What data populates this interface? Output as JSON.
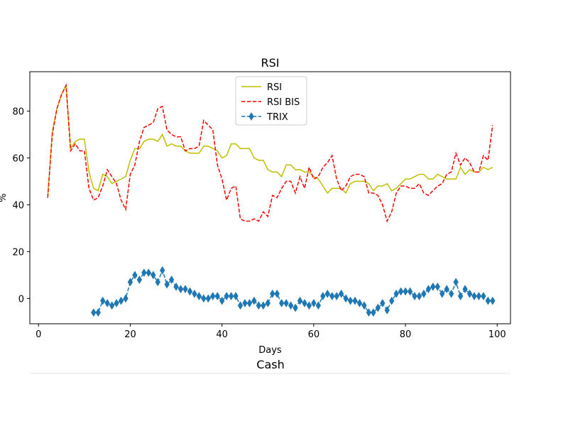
{
  "chart_data": [
    {
      "type": "line",
      "title": "RSI",
      "xlabel": "Days",
      "ylabel": "%",
      "xlim": [
        -1.9,
        102.9
      ],
      "ylim": [
        -10.8,
        96.8
      ],
      "xticks": [
        0,
        20,
        40,
        60,
        80,
        100
      ],
      "yticks": [
        0,
        20,
        40,
        60,
        80
      ],
      "grid": false,
      "legend_position": "top-center",
      "series": [
        {
          "name": "RSI",
          "color": "#bfbf00",
          "style": "solid",
          "marker": "none",
          "x": [
            2,
            3,
            4,
            5,
            6,
            7,
            8,
            9,
            10,
            11,
            12,
            13,
            14,
            15,
            16,
            17,
            18,
            19,
            20,
            21,
            22,
            23,
            24,
            25,
            26,
            27,
            28,
            29,
            30,
            31,
            32,
            33,
            34,
            35,
            36,
            37,
            38,
            39,
            40,
            41,
            42,
            43,
            44,
            45,
            46,
            47,
            48,
            49,
            50,
            51,
            52,
            53,
            54,
            55,
            56,
            57,
            58,
            59,
            60,
            61,
            62,
            63,
            64,
            65,
            66,
            67,
            68,
            69,
            70,
            71,
            72,
            73,
            74,
            75,
            76,
            77,
            78,
            79,
            80,
            81,
            82,
            83,
            84,
            85,
            86,
            87,
            88,
            89,
            90,
            91,
            92,
            93,
            94,
            95,
            96,
            97,
            98,
            99
          ],
          "y": [
            43,
            71,
            81,
            87,
            91,
            64,
            67,
            68,
            68,
            54,
            47,
            46,
            53,
            52,
            49,
            50,
            51,
            52,
            59,
            64,
            64,
            67,
            68,
            68,
            67,
            70,
            65,
            66,
            65,
            65,
            63,
            62,
            62,
            62,
            65,
            65,
            64,
            63,
            60,
            61,
            66,
            66,
            64,
            64,
            64,
            60,
            59,
            59,
            55,
            54,
            54,
            52,
            57,
            57,
            55,
            55,
            54,
            54,
            52,
            51,
            48,
            45,
            47,
            47,
            47,
            45,
            49,
            50,
            50,
            50,
            49,
            46,
            48,
            48,
            49,
            46,
            47,
            49,
            51,
            51,
            52,
            53,
            53,
            51,
            51,
            53,
            52,
            51,
            51,
            51,
            56,
            53,
            55,
            54,
            54,
            56,
            55,
            56
          ]
        },
        {
          "name": "RSI BIS",
          "color": "#ff0000",
          "style": "dashed",
          "marker": "none",
          "x": [
            2,
            3,
            4,
            5,
            6,
            7,
            8,
            9,
            10,
            11,
            12,
            13,
            14,
            15,
            16,
            17,
            18,
            19,
            20,
            21,
            22,
            23,
            24,
            25,
            26,
            27,
            28,
            29,
            30,
            31,
            32,
            33,
            34,
            35,
            36,
            37,
            38,
            39,
            40,
            41,
            42,
            43,
            44,
            45,
            46,
            47,
            48,
            49,
            50,
            51,
            52,
            53,
            54,
            55,
            56,
            57,
            58,
            59,
            60,
            61,
            62,
            63,
            64,
            65,
            66,
            67,
            68,
            69,
            70,
            71,
            72,
            73,
            74,
            75,
            76,
            77,
            78,
            79,
            80,
            81,
            82,
            83,
            84,
            85,
            86,
            87,
            88,
            89,
            90,
            91,
            92,
            93,
            94,
            95,
            96,
            97,
            98,
            99
          ],
          "y": [
            43,
            70,
            81,
            87,
            91,
            63,
            66,
            63,
            63,
            47,
            42,
            43,
            48,
            55,
            52,
            49,
            42,
            38,
            53,
            57,
            67,
            73,
            74,
            75,
            81,
            82,
            72,
            70,
            69,
            69,
            63,
            64,
            64,
            65,
            76,
            74,
            72,
            57,
            51,
            42,
            47,
            48,
            34,
            33,
            33,
            34,
            33,
            37,
            35,
            44,
            43,
            47,
            50,
            50,
            45,
            52,
            47,
            56,
            51,
            52,
            56,
            58,
            61,
            51,
            46,
            48,
            52,
            53,
            53,
            52,
            45,
            45,
            44,
            40,
            33,
            37,
            45,
            48,
            48,
            47,
            47,
            49,
            45,
            44,
            46,
            48,
            49,
            53,
            54,
            62,
            57,
            60,
            58,
            54,
            54,
            61,
            59,
            74
          ]
        },
        {
          "name": "TRIX",
          "color": "#1f77b4",
          "style": "dashed",
          "marker": "diamond",
          "x": [
            12,
            13,
            14,
            15,
            16,
            17,
            18,
            19,
            20,
            21,
            22,
            23,
            24,
            25,
            26,
            27,
            28,
            29,
            30,
            31,
            32,
            33,
            34,
            35,
            36,
            37,
            38,
            39,
            40,
            41,
            42,
            43,
            44,
            45,
            46,
            47,
            48,
            49,
            50,
            51,
            52,
            53,
            54,
            55,
            56,
            57,
            58,
            59,
            60,
            61,
            62,
            63,
            64,
            65,
            66,
            67,
            68,
            69,
            70,
            71,
            72,
            73,
            74,
            75,
            76,
            77,
            78,
            79,
            80,
            81,
            82,
            83,
            84,
            85,
            86,
            87,
            88,
            89,
            90,
            91,
            92,
            93,
            94,
            95,
            96,
            97,
            98,
            99
          ],
          "y": [
            -6,
            -6,
            -1,
            -2,
            -3,
            -2,
            -1,
            0,
            7,
            10,
            8,
            11,
            11,
            10,
            7,
            12,
            6,
            8,
            5,
            4,
            4,
            3,
            2,
            1,
            0,
            0,
            1,
            1,
            -1,
            1,
            1,
            1,
            -3,
            -2,
            -2,
            -1,
            -3,
            -3,
            -2,
            2,
            2,
            -2,
            -2,
            -3,
            -4,
            -1,
            -2,
            -3,
            -2,
            -3,
            1,
            2,
            1,
            1,
            2,
            0,
            -1,
            -1,
            -2,
            -3,
            -6,
            -6,
            -4,
            -2,
            -5,
            -1,
            2,
            3,
            3,
            3,
            1,
            1,
            2,
            4,
            5,
            5,
            2,
            4,
            2,
            7,
            1,
            4,
            2,
            1,
            1,
            1,
            -1,
            -1
          ]
        }
      ]
    },
    {
      "type": "line",
      "title": "Cash",
      "series": []
    }
  ]
}
